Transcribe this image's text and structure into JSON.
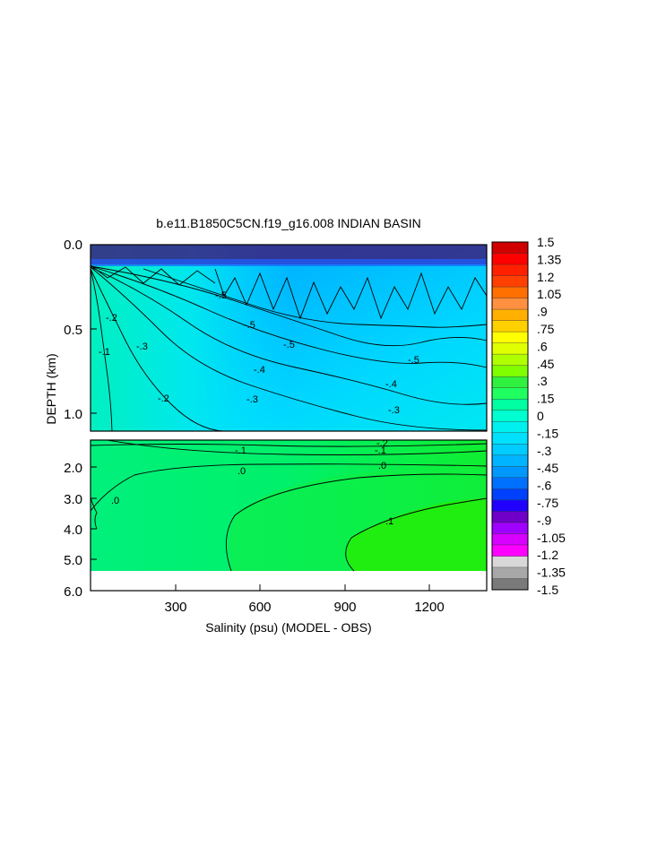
{
  "chart_data": {
    "type": "heatmap",
    "title": "b.e11.B1850C5CN.f19_g16.008 INDIAN BASIN",
    "xlabel": "Salinity (psu) (MODEL - OBS)",
    "ylabel": "DEPTH (km)",
    "x_ticks": [
      "300",
      "600",
      "900",
      "1200"
    ],
    "x_range": [
      0,
      1440
    ],
    "upper_panel": {
      "y_range_km": [
        0.0,
        1.1
      ],
      "y_ticks": [
        "0.0",
        "0.5",
        "1.0"
      ],
      "contour_labels": [
        "-.5",
        "-.5",
        "-.4",
        "-.4",
        "-.3",
        "-.3",
        "-.3",
        "-.2",
        "-.2",
        "-.1",
        "-.5",
        "-.6"
      ]
    },
    "lower_panel": {
      "y_range_km": [
        1.1,
        6.0
      ],
      "y_ticks": [
        "2.0",
        "3.0",
        "4.0",
        "5.0",
        "6.0"
      ],
      "contour_labels": [
        "-.1",
        "-.1",
        "-.2",
        ".0",
        ".0",
        ".0",
        ".1"
      ]
    },
    "colorbar": {
      "labels": [
        "1.5",
        "1.35",
        "1.2",
        "1.05",
        ".9",
        ".75",
        ".6",
        ".45",
        ".3",
        ".15",
        "0",
        "-.15",
        "-.3",
        "-.45",
        "-.6",
        "-.75",
        "-.9",
        "-1.05",
        "-1.2",
        "-1.35",
        "-1.5"
      ],
      "range": [
        -1.5,
        1.5
      ],
      "colors": [
        "#7a7a7a",
        "#a8a8a8",
        "#d8d8d8",
        "#ff00ff",
        "#d800ff",
        "#a000ff",
        "#7000c8",
        "#2000ff",
        "#0040ff",
        "#0070ff",
        "#0098ff",
        "#00b4ff",
        "#00ccff",
        "#00e0ff",
        "#00f0f0",
        "#00ffd0",
        "#00ffa0",
        "#20ff60",
        "#30f040",
        "#80ff00",
        "#b0ff00",
        "#e0ff00",
        "#ffff00",
        "#ffd000",
        "#ffb000",
        "#ff9040",
        "#ff7000",
        "#ff4000",
        "#ff2000",
        "#ff0000",
        "#d00000"
      ]
    }
  }
}
